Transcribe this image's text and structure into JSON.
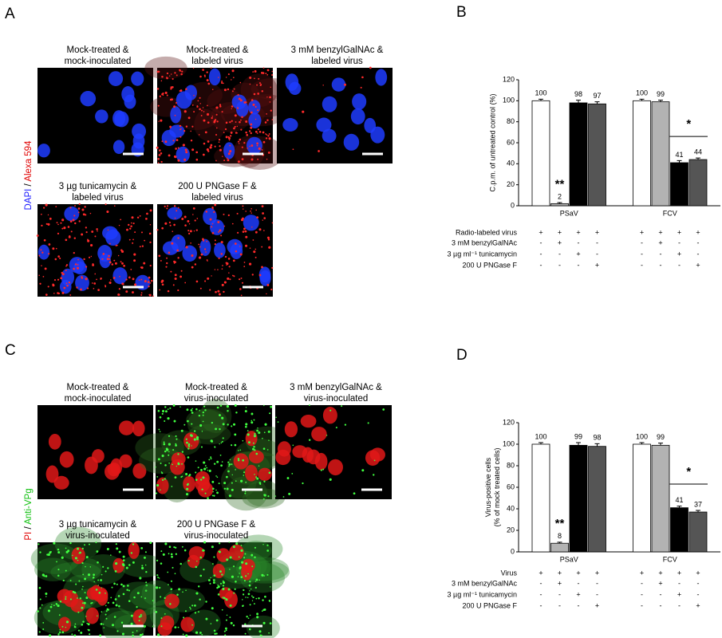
{
  "panel_a": {
    "letter": "A",
    "stain": {
      "first": "DAPI",
      "separator": "/",
      "second": "Alexa 594"
    },
    "images": [
      {
        "caption": [
          "Mock-treated &",
          "mock-inoculated"
        ]
      },
      {
        "caption": [
          "Mock-treated &",
          "labeled virus"
        ]
      },
      {
        "caption": [
          "3 mM benzylGalNAc &",
          "labeled virus"
        ]
      },
      {
        "caption": [
          "3 µg tunicamycin &",
          "labeled virus"
        ]
      },
      {
        "caption": [
          "200 U PNGase F &",
          "labeled virus"
        ]
      }
    ]
  },
  "panel_c": {
    "letter": "C",
    "stain": {
      "first": "PI",
      "separator": "/",
      "second": "Anti-VPg"
    },
    "images": [
      {
        "caption": [
          "Mock-treated &",
          "mock-inoculated"
        ]
      },
      {
        "caption": [
          "Mock-treated &",
          "virus-inoculated"
        ]
      },
      {
        "caption": [
          "3 mM benzylGalNAc &",
          "virus-inoculated"
        ]
      },
      {
        "caption": [
          "3 µg tunicamycin &",
          "virus-inoculated"
        ]
      },
      {
        "caption": [
          "200 U PNGase F &",
          "virus-inoculated"
        ]
      }
    ]
  },
  "chart_data": [
    {
      "type": "bar",
      "letter": "B",
      "ylabel": [
        "C.p.m. of untreated control (%)"
      ],
      "categories": [
        "PSaV",
        "FCV"
      ],
      "ylim": [
        0,
        120
      ],
      "yticks": [
        0,
        20,
        40,
        60,
        80,
        100,
        120
      ],
      "series": [
        {
          "color": "#ffffff",
          "values": [
            100,
            100
          ],
          "errors": [
            1.5,
            1.5
          ]
        },
        {
          "color": "#b3b3b3",
          "values": [
            2,
            99
          ],
          "errors": [
            1,
            1.5
          ]
        },
        {
          "color": "#000000",
          "values": [
            98,
            41
          ],
          "errors": [
            2.5,
            2
          ]
        },
        {
          "color": "#555555",
          "values": [
            97,
            44
          ],
          "errors": [
            2,
            1.5
          ]
        }
      ],
      "annotations": [
        "**",
        "*"
      ],
      "conditions": [
        {
          "label": "Radio-labeled virus",
          "signs": [
            "+",
            "+",
            "+",
            "+",
            "+",
            "+",
            "+",
            "+"
          ]
        },
        {
          "label": "3 mM benzylGalNAc",
          "signs": [
            "-",
            "+",
            "-",
            "-",
            "-",
            "+",
            "-",
            "-"
          ]
        },
        {
          "label": "3 µg ml⁻¹ tunicamycin",
          "signs": [
            "-",
            "-",
            "+",
            "-",
            "-",
            "-",
            "+",
            "-"
          ]
        },
        {
          "label": "200 U PNGase F",
          "signs": [
            "-",
            "-",
            "-",
            "+",
            "-",
            "-",
            "-",
            "+"
          ]
        }
      ]
    },
    {
      "type": "bar",
      "letter": "D",
      "ylabel": [
        "Virus-positive cells",
        "(% of mock treated cells)"
      ],
      "categories": [
        "PSaV",
        "FCV"
      ],
      "ylim": [
        0,
        120
      ],
      "yticks": [
        0,
        20,
        40,
        60,
        80,
        100,
        120
      ],
      "series": [
        {
          "color": "#ffffff",
          "values": [
            100,
            100
          ],
          "errors": [
            1.5,
            1.5
          ]
        },
        {
          "color": "#b3b3b3",
          "values": [
            8,
            99
          ],
          "errors": [
            1,
            2
          ]
        },
        {
          "color": "#000000",
          "values": [
            99,
            41
          ],
          "errors": [
            2.5,
            1.5
          ]
        },
        {
          "color": "#555555",
          "values": [
            98,
            37
          ],
          "errors": [
            2.5,
            1.5
          ]
        }
      ],
      "annotations": [
        "**",
        "*"
      ],
      "conditions": [
        {
          "label": "Virus",
          "signs": [
            "+",
            "+",
            "+",
            "+",
            "+",
            "+",
            "+",
            "+"
          ]
        },
        {
          "label": "3 mM benzylGalNAc",
          "signs": [
            "-",
            "+",
            "-",
            "-",
            "-",
            "+",
            "-",
            "-"
          ]
        },
        {
          "label": "3 µg ml⁻¹ tunicamycin",
          "signs": [
            "-",
            "-",
            "+",
            "-",
            "-",
            "-",
            "+",
            "-"
          ]
        },
        {
          "label": "200 U PNGase F",
          "signs": [
            "-",
            "-",
            "-",
            "+",
            "-",
            "-",
            "-",
            "+"
          ]
        }
      ]
    }
  ]
}
